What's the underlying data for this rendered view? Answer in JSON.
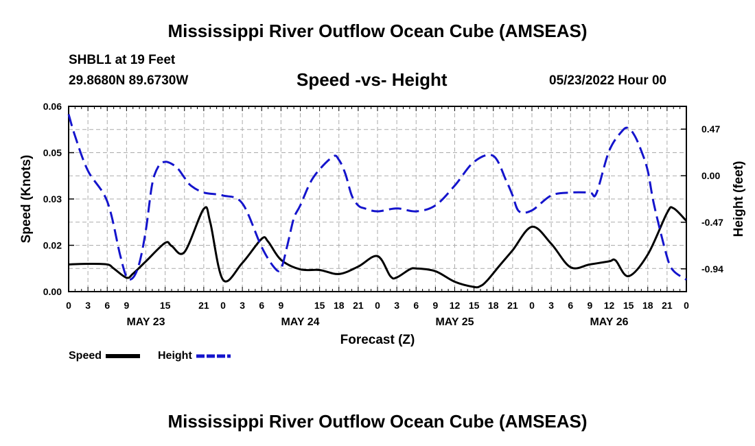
{
  "header": {
    "title": "Mississippi River Outflow Ocean Cube (AMSEAS)",
    "station": "SHBL1 at 19 Feet",
    "coords": "29.8680N  89.6730W",
    "subtitle": "Speed -vs- Height",
    "datetime": "05/23/2022 Hour 00"
  },
  "footer": {
    "title": "Mississippi River Outflow Ocean Cube (AMSEAS)"
  },
  "legend": {
    "speed_label": "Speed",
    "height_label": "Height"
  },
  "colors": {
    "speed": "#000000",
    "height": "#1414cc",
    "grid": "#aaaaaa"
  },
  "chart_data": {
    "type": "line",
    "xlabel": "Forecast (Z)",
    "ylabel": "Speed (Knots)",
    "y2label": "Height (feet)",
    "xlim": [
      0,
      96
    ],
    "ylim": [
      0,
      0.06
    ],
    "y2lim": [
      -1.17,
      0.7
    ],
    "x_tick_values": [
      0,
      3,
      6,
      9,
      12,
      15,
      18,
      21,
      24,
      27,
      30,
      33,
      36,
      39,
      42,
      45,
      48,
      51,
      54,
      57,
      60,
      63,
      66,
      69,
      72,
      75,
      78,
      81,
      84,
      87,
      90,
      93,
      96
    ],
    "x_tick_labels": [
      "0",
      "3",
      "6",
      "9",
      "15",
      "21",
      "0",
      "3",
      "6",
      "9",
      "15",
      "18",
      "21",
      "0",
      "3",
      "6",
      "9",
      "12",
      "15",
      "18",
      "21",
      "0",
      "3",
      "6",
      "9",
      "12",
      "15",
      "18",
      "21",
      "0"
    ],
    "x_tick_label_hours": [
      0,
      3,
      6,
      9,
      15,
      21,
      24,
      27,
      30,
      33,
      39,
      42,
      45,
      48,
      51,
      54,
      57,
      60,
      63,
      66,
      69,
      72,
      75,
      78,
      81,
      84,
      87,
      90,
      93,
      96
    ],
    "y_ticks": [
      "0.00",
      "0.02",
      "0.03",
      "0.05",
      "0.06"
    ],
    "y_tick_values": [
      0,
      0.015,
      0.03,
      0.045,
      0.06
    ],
    "y_tick_display": [
      0,
      0.015,
      0.03,
      0.045,
      0.06
    ],
    "y2_ticks": [
      "0.47",
      "0.00",
      "-0.47",
      "-0.94"
    ],
    "y2_tick_values": [
      0.47,
      0,
      -0.47,
      -0.94
    ],
    "date_labels": [
      {
        "hour": 12,
        "label": "MAY 23"
      },
      {
        "hour": 36,
        "label": "MAY 24"
      },
      {
        "hour": 60,
        "label": "MAY 25"
      },
      {
        "hour": 84,
        "label": "MAY 26"
      }
    ],
    "series": [
      {
        "name": "Speed",
        "axis": "left",
        "style": "solid",
        "x": [
          0,
          3,
          6,
          7,
          9,
          10,
          12,
          15,
          16,
          18,
          21,
          22,
          24,
          27,
          30,
          31,
          33,
          36,
          39,
          42,
          45,
          48,
          50,
          51,
          53,
          54,
          57,
          60,
          63,
          64,
          65,
          67,
          69,
          72,
          75,
          78,
          81,
          84,
          85,
          87,
          90,
          93,
          94,
          96
        ],
        "y": [
          0.0088,
          0.009,
          0.0088,
          0.0075,
          0.0045,
          0.0058,
          0.0098,
          0.0158,
          0.0148,
          0.0128,
          0.0268,
          0.0225,
          0.0038,
          0.0093,
          0.0171,
          0.0162,
          0.0103,
          0.0072,
          0.007,
          0.0057,
          0.0081,
          0.0115,
          0.005,
          0.0046,
          0.0072,
          0.0075,
          0.0066,
          0.0032,
          0.0015,
          0.0018,
          0.0035,
          0.0085,
          0.0134,
          0.021,
          0.0155,
          0.0079,
          0.0088,
          0.0098,
          0.0101,
          0.005,
          0.012,
          0.0255,
          0.027,
          0.0229
        ]
      },
      {
        "name": "Height",
        "axis": "right",
        "style": "dashed",
        "x": [
          0,
          1,
          3,
          6,
          8,
          9,
          10,
          11,
          12,
          13,
          14,
          15,
          16,
          17,
          18,
          19,
          21,
          24,
          27,
          30,
          32,
          33,
          34,
          35,
          36,
          38,
          41,
          42,
          43,
          44,
          45,
          46,
          48,
          51,
          54,
          57,
          60,
          63,
          66,
          68,
          69,
          70,
          72,
          75,
          78,
          81,
          82,
          84,
          86,
          87,
          88,
          89,
          90,
          91,
          93,
          94,
          96
        ],
        "y": [
          0.62,
          0.4,
          0.05,
          -0.26,
          -0.8,
          -1.02,
          -1.03,
          -0.88,
          -0.55,
          -0.08,
          0.1,
          0.14,
          0.12,
          0.07,
          -0.02,
          -0.1,
          -0.17,
          -0.2,
          -0.28,
          -0.72,
          -0.93,
          -0.94,
          -0.7,
          -0.43,
          -0.3,
          -0.02,
          0.19,
          0.16,
          0.02,
          -0.2,
          -0.3,
          -0.33,
          -0.36,
          -0.33,
          -0.36,
          -0.3,
          -0.1,
          0.14,
          0.2,
          -0.05,
          -0.2,
          -0.36,
          -0.35,
          -0.2,
          -0.17,
          -0.17,
          -0.18,
          0.25,
          0.45,
          0.48,
          0.4,
          0.25,
          0.05,
          -0.3,
          -0.82,
          -0.96,
          -1.05
        ]
      }
    ]
  }
}
